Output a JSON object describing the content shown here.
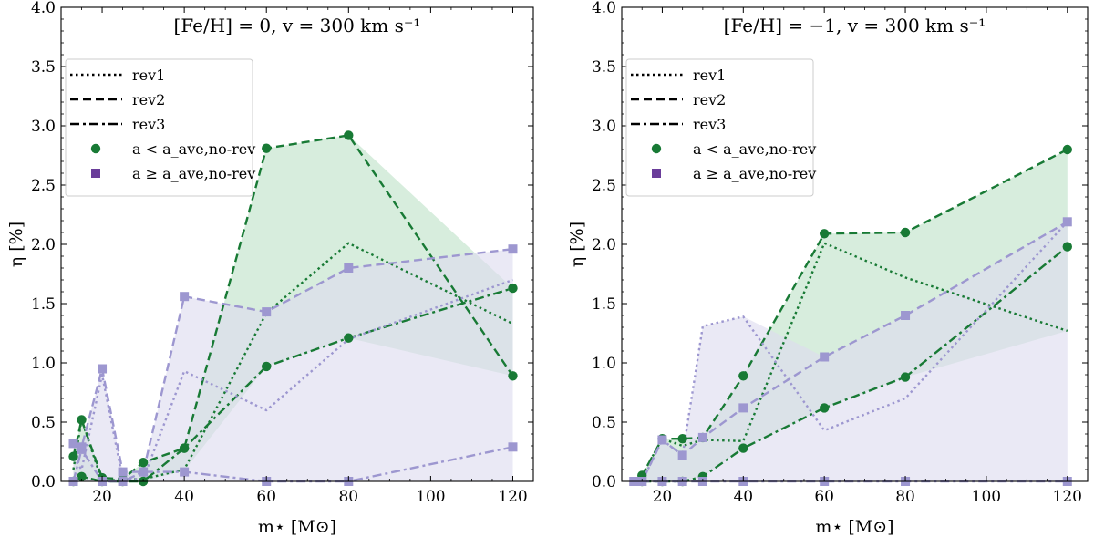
{
  "chart_data": [
    {
      "type": "line",
      "title": "[Fe/H] = 0, v = 300 km s⁻¹",
      "xlabel": "m⋆ [M⊙]",
      "ylabel": "η [%]",
      "xlim": [
        10,
        125
      ],
      "ylim": [
        0,
        4.0
      ],
      "xticks": [
        20,
        40,
        60,
        80,
        100,
        120
      ],
      "yticks": [
        0.0,
        0.5,
        1.0,
        1.5,
        2.0,
        2.5,
        3.0,
        3.5,
        4.0
      ],
      "legend_position": "top-left",
      "legend": [
        {
          "label": "rev1",
          "kind": "line",
          "dash": "dotted"
        },
        {
          "label": "rev2",
          "kind": "line",
          "dash": "dashed"
        },
        {
          "label": "rev3",
          "kind": "line",
          "dash": "dashdot"
        },
        {
          "label": "a < a_ave,no-rev",
          "kind": "marker",
          "marker": "circle",
          "color": "#187a35"
        },
        {
          "label": "a ≥ a_ave,no-rev",
          "kind": "marker",
          "marker": "square",
          "color": "#6a3d9a"
        }
      ],
      "bands": [
        {
          "name": "green range",
          "color": "#bfe2c8",
          "x": [
            13,
            15,
            20,
            25,
            30,
            40,
            60,
            80,
            120
          ],
          "lower": [
            0.0,
            0.04,
            0.0,
            0.0,
            0.0,
            0.09,
            0.97,
            1.21,
            0.89
          ],
          "upper": [
            0.21,
            0.52,
            0.03,
            0.02,
            0.16,
            0.28,
            2.81,
            2.92,
            1.63
          ]
        },
        {
          "name": "purple range",
          "color": "#dddcef",
          "x": [
            13,
            15,
            20,
            25,
            30,
            40,
            60,
            80,
            120
          ],
          "lower": [
            0.0,
            0.0,
            0.0,
            0.0,
            0.0,
            0.0,
            0.0,
            0.0,
            0.0
          ],
          "upper": [
            0.32,
            0.29,
            0.95,
            0.08,
            0.08,
            1.56,
            1.43,
            1.8,
            1.96
          ]
        }
      ],
      "series": [
        {
          "name": "rev1 a<a_ave",
          "color": "#187a35",
          "dash": "dotted",
          "marker": "none",
          "x": [
            13,
            15,
            20,
            25,
            30,
            40,
            60,
            80,
            120
          ],
          "y": [
            0.1,
            0.52,
            0.0,
            0.02,
            0.02,
            0.1,
            1.42,
            2.01,
            1.33
          ]
        },
        {
          "name": "rev2 a<a_ave",
          "color": "#187a35",
          "dash": "dashed",
          "marker": "circle",
          "x": [
            13,
            15,
            20,
            25,
            30,
            40,
            60,
            80,
            120
          ],
          "y": [
            0.21,
            0.52,
            0.03,
            0.02,
            0.16,
            0.28,
            2.81,
            2.92,
            0.89
          ]
        },
        {
          "name": "rev3 a<a_ave",
          "color": "#187a35",
          "dash": "dashdot",
          "marker": "circle",
          "x": [
            13,
            15,
            20,
            25,
            30,
            40,
            60,
            80,
            120
          ],
          "y": [
            0.0,
            0.04,
            0.0,
            0.0,
            0.0,
            0.28,
            0.97,
            1.21,
            1.63
          ]
        },
        {
          "name": "rev1 a>=a_ave",
          "color": "#9d97d0",
          "dash": "dotted",
          "marker": "none",
          "x": [
            13,
            15,
            20,
            25,
            30,
            40,
            60,
            80,
            120
          ],
          "y": [
            0.2,
            0.1,
            0.9,
            0.02,
            0.02,
            0.93,
            0.6,
            1.2,
            1.7
          ]
        },
        {
          "name": "rev2 a>=a_ave",
          "color": "#9d97d0",
          "dash": "dashed",
          "marker": "square",
          "x": [
            13,
            15,
            20,
            25,
            30,
            40,
            60,
            80,
            120
          ],
          "y": [
            0.32,
            0.29,
            0.95,
            0.08,
            0.08,
            1.56,
            1.43,
            1.8,
            1.96
          ]
        },
        {
          "name": "rev3 a>=a_ave",
          "color": "#9d97d0",
          "dash": "dashdot",
          "marker": "square",
          "x": [
            13,
            15,
            20,
            25,
            30,
            40,
            60,
            80,
            120
          ],
          "y": [
            0.0,
            0.27,
            0.0,
            0.0,
            0.08,
            0.08,
            0.0,
            0.0,
            0.29
          ]
        }
      ]
    },
    {
      "type": "line",
      "title": "[Fe/H] = −1, v = 300 km s⁻¹",
      "xlabel": "m⋆ [M⊙]",
      "ylabel": "η [%]",
      "xlim": [
        10,
        125
      ],
      "ylim": [
        0,
        4.0
      ],
      "xticks": [
        20,
        40,
        60,
        80,
        100,
        120
      ],
      "yticks": [
        0.0,
        0.5,
        1.0,
        1.5,
        2.0,
        2.5,
        3.0,
        3.5,
        4.0
      ],
      "legend_position": "top-left",
      "legend": [
        {
          "label": "rev1",
          "kind": "line",
          "dash": "dotted"
        },
        {
          "label": "rev2",
          "kind": "line",
          "dash": "dashed"
        },
        {
          "label": "rev3",
          "kind": "line",
          "dash": "dashdot"
        },
        {
          "label": "a < a_ave,no-rev",
          "kind": "marker",
          "marker": "circle",
          "color": "#187a35"
        },
        {
          "label": "a ≥ a_ave,no-rev",
          "kind": "marker",
          "marker": "square",
          "color": "#6a3d9a"
        }
      ],
      "bands": [
        {
          "name": "green range",
          "color": "#bfe2c8",
          "x": [
            15,
            20,
            25,
            30,
            40,
            60,
            80,
            120
          ],
          "lower": [
            0.0,
            0.0,
            0.0,
            0.04,
            0.28,
            0.62,
            0.88,
            1.27
          ],
          "upper": [
            0.05,
            0.36,
            0.36,
            0.37,
            0.89,
            2.09,
            2.1,
            2.8
          ]
        },
        {
          "name": "purple range",
          "color": "#dddcef",
          "x": [
            13,
            15,
            20,
            25,
            30,
            40,
            60,
            80,
            120
          ],
          "lower": [
            0.0,
            0.0,
            0.0,
            0.0,
            0.0,
            0.0,
            0.0,
            0.0,
            0.0
          ],
          "upper": [
            0.0,
            0.0,
            0.35,
            0.22,
            1.31,
            1.39,
            1.05,
            1.4,
            2.19
          ]
        }
      ],
      "series": [
        {
          "name": "rev1 a<a_ave",
          "color": "#187a35",
          "dash": "dotted",
          "marker": "none",
          "x": [
            15,
            20,
            25,
            30,
            40,
            60,
            80,
            120
          ],
          "y": [
            0.05,
            0.36,
            0.3,
            0.35,
            0.34,
            2.01,
            1.72,
            1.27
          ]
        },
        {
          "name": "rev2 a<a_ave",
          "color": "#187a35",
          "dash": "dashed",
          "marker": "circle",
          "x": [
            15,
            20,
            25,
            30,
            40,
            60,
            80,
            120
          ],
          "y": [
            0.05,
            0.36,
            0.36,
            0.37,
            0.89,
            2.09,
            2.1,
            2.8
          ]
        },
        {
          "name": "rev3 a<a_ave",
          "color": "#187a35",
          "dash": "dashdot",
          "marker": "circle",
          "x": [
            15,
            20,
            25,
            30,
            40,
            60,
            80,
            120
          ],
          "y": [
            0.0,
            0.0,
            0.0,
            0.04,
            0.28,
            0.62,
            0.88,
            1.98
          ]
        },
        {
          "name": "rev1 a>=a_ave",
          "color": "#9d97d0",
          "dash": "dotted",
          "marker": "none",
          "x": [
            13,
            15,
            20,
            25,
            30,
            40,
            60,
            80,
            120
          ],
          "y": [
            0.0,
            0.0,
            0.35,
            0.22,
            1.31,
            1.39,
            0.43,
            0.7,
            2.19
          ]
        },
        {
          "name": "rev2 a>=a_ave",
          "color": "#9d97d0",
          "dash": "dashed",
          "marker": "square",
          "x": [
            13,
            15,
            20,
            25,
            30,
            40,
            60,
            80,
            120
          ],
          "y": [
            0.0,
            0.0,
            0.35,
            0.22,
            0.37,
            0.62,
            1.05,
            1.4,
            2.19
          ]
        },
        {
          "name": "rev3 a>=a_ave",
          "color": "#9d97d0",
          "dash": "dashdot",
          "marker": "square",
          "x": [
            13,
            15,
            20,
            25,
            30,
            40,
            60,
            80,
            120
          ],
          "y": [
            0.0,
            0.0,
            0.0,
            0.0,
            0.0,
            0.0,
            0.0,
            0.0,
            0.0
          ]
        }
      ]
    }
  ]
}
